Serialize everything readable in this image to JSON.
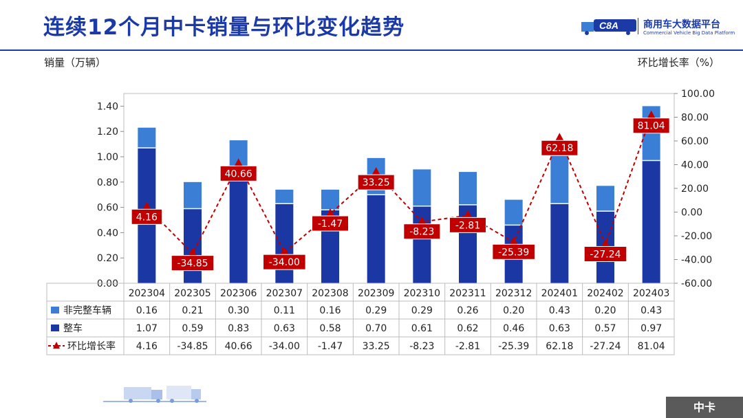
{
  "header": {
    "title": "连续12个月中卡销量与环比变化趋势",
    "logo_text": "商用车大数据平台",
    "logo_sub": "Commercial Vehicle Big Data Platform",
    "logo_mark": "C8A"
  },
  "footer": {
    "tag": "中卡"
  },
  "colors": {
    "brand": "#1b3aa6",
    "series_non_complete": "#3a7fd5",
    "series_complete": "#1a37a3",
    "series_mom": "#c00000",
    "mom_label_bg": "#c00000"
  },
  "chart_data": {
    "type": "bar",
    "stacked": true,
    "y_left_label": "销量（万辆）",
    "y_right_label": "环比增长率（%）",
    "categories": [
      "202304",
      "202305",
      "202306",
      "202307",
      "202308",
      "202309",
      "202310",
      "202311",
      "202312",
      "202401",
      "202402",
      "202403"
    ],
    "ylim_left": [
      0,
      1.5
    ],
    "yticks_left": [
      "0.00",
      "0.20",
      "0.40",
      "0.60",
      "0.80",
      "1.00",
      "1.20",
      "1.40"
    ],
    "ylim_right": [
      -60,
      100
    ],
    "yticks_right": [
      "-60.00",
      "-40.00",
      "-20.00",
      "0.00",
      "20.00",
      "40.00",
      "60.00",
      "80.00",
      "100.00"
    ],
    "series": [
      {
        "name": "非完整车辆",
        "kind": "bar",
        "axis": "left",
        "values": [
          0.16,
          0.21,
          0.3,
          0.11,
          0.16,
          0.29,
          0.29,
          0.26,
          0.2,
          0.43,
          0.2,
          0.43
        ],
        "labels": [
          "0.16",
          "0.21",
          "0.30",
          "0.11",
          "0.16",
          "0.29",
          "0.29",
          "0.26",
          "0.20",
          "0.43",
          "0.20",
          "0.43"
        ]
      },
      {
        "name": "整车",
        "kind": "bar",
        "axis": "left",
        "values": [
          1.07,
          0.59,
          0.83,
          0.63,
          0.58,
          0.7,
          0.61,
          0.62,
          0.46,
          0.63,
          0.57,
          0.97
        ],
        "labels": [
          "1.07",
          "0.59",
          "0.83",
          "0.63",
          "0.58",
          "0.70",
          "0.61",
          "0.62",
          "0.46",
          "0.63",
          "0.57",
          "0.97"
        ]
      },
      {
        "name": "环比增长率",
        "kind": "line",
        "axis": "right",
        "values": [
          4.16,
          -34.85,
          40.66,
          -34.0,
          -1.47,
          33.25,
          -8.23,
          -2.81,
          -25.39,
          62.18,
          -27.24,
          81.04
        ],
        "labels": [
          "4.16",
          "-34.85",
          "40.66",
          "-34.00",
          "-1.47",
          "33.25",
          "-8.23",
          "-2.81",
          "-25.39",
          "62.18",
          "-27.24",
          "81.04"
        ]
      }
    ],
    "legend": "data-table"
  }
}
